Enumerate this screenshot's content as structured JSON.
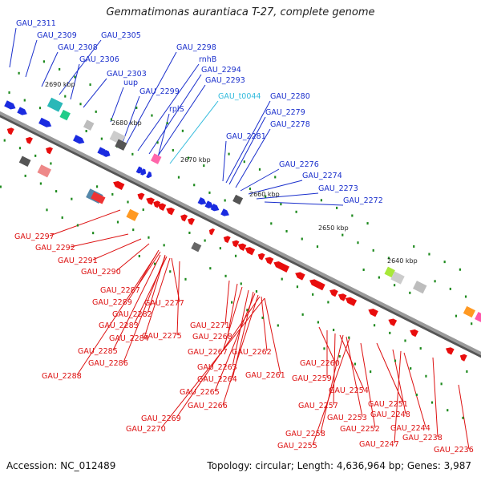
{
  "title": "Gemmatimonas aurantiaca T-27, complete genome",
  "footer": {
    "accession": "Accession: NC_012489",
    "topology": "Topology: circular; Length: 4,636,964 bp; Genes: 3,987"
  },
  "colors": {
    "forward_label": "#1a2fcc",
    "reverse_label": "#dd1111",
    "rna_label": "#33bbdd",
    "backbone": "#8a8a8a"
  },
  "ticks": [
    "2690 kbp",
    "2680 kbp",
    "2670 kbp",
    "2660 kbp",
    "2650 kbp",
    "2640 kbp"
  ],
  "forward_labels": [
    "GAU_2311",
    "GAU_2309",
    "GAU_2308",
    "GAU_2305",
    "GAU_2306",
    "GAU_2303",
    "uup",
    "GAU_2298",
    "rnhB",
    "GAU_2294",
    "GAU_2293",
    "GAU_2299",
    "rplS",
    "GAU_t0044",
    "GAU_2280",
    "GAU_2279",
    "GAU_2278",
    "GAU_2281",
    "GAU_2276",
    "GAU_2274",
    "GAU_2273",
    "GAU_2272"
  ],
  "reverse_labels": [
    "GAU_2297",
    "GAU_2292",
    "GAU_2291",
    "GAU_2290",
    "GAU_2287",
    "GAU_2289",
    "GAU_2282",
    "GAU_2277",
    "GAU_2283",
    "GAU_2284",
    "GAU_2285",
    "GAU_2286",
    "GAU_2288",
    "GAU_2275",
    "GAU_2271",
    "GAU_2268",
    "GAU_2267",
    "GAU_2262",
    "GAU_2263",
    "GAU_2264",
    "GAU_2261",
    "GAU_2265",
    "GAU_2266",
    "GAU_2269",
    "GAU_2270",
    "GAU_2260",
    "GAU_2259",
    "GAU_2254",
    "GAU_2257",
    "GAU_2253",
    "GAU_2251",
    "GAU_2258",
    "GAU_2252",
    "GAU_2248",
    "GAU_2255",
    "GAU_2244",
    "GAU_2247",
    "GAU_2238",
    "GAU_2236"
  ]
}
